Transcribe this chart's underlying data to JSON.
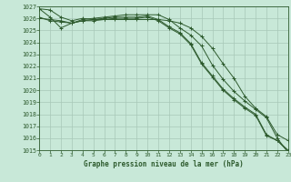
{
  "title": "Graphe pression niveau de la mer (hPa)",
  "background_color": "#c8e8d8",
  "grid_color": "#a8c8b8",
  "line_color": "#2d5a2d",
  "xlim": [
    0,
    23
  ],
  "ylim": [
    1015,
    1027
  ],
  "xticks": [
    0,
    1,
    2,
    3,
    4,
    5,
    6,
    7,
    8,
    9,
    10,
    11,
    12,
    13,
    14,
    15,
    16,
    17,
    18,
    19,
    20,
    21,
    22,
    23
  ],
  "yticks": [
    1015,
    1016,
    1017,
    1018,
    1019,
    1020,
    1021,
    1022,
    1023,
    1024,
    1025,
    1026,
    1027
  ],
  "series": [
    [
      1026.8,
      1026.7,
      1026.1,
      1025.8,
      1026.0,
      1025.9,
      1025.9,
      1025.9,
      1025.9,
      1025.9,
      1025.9,
      1025.9,
      1025.8,
      1025.6,
      1025.2,
      1024.5,
      1023.5,
      1022.2,
      1021.0,
      1019.5,
      1018.5,
      1017.8,
      1016.3,
      1015.8
    ],
    [
      1026.1,
      1025.8,
      1025.7,
      1025.6,
      1025.8,
      1025.8,
      1025.9,
      1026.0,
      1026.0,
      1026.0,
      1026.1,
      1025.8,
      1025.2,
      1024.7,
      1023.8,
      1022.2,
      1021.1,
      1020.0,
      1019.2,
      1018.5,
      1017.9,
      1016.2,
      1015.8,
      1014.9
    ],
    [
      1026.0,
      1025.9,
      1025.8,
      1025.6,
      1025.8,
      1025.9,
      1026.0,
      1026.1,
      1026.1,
      1026.1,
      1026.2,
      1025.9,
      1025.3,
      1024.8,
      1023.9,
      1022.3,
      1021.2,
      1020.1,
      1019.3,
      1018.6,
      1018.0,
      1016.3,
      1015.8,
      1015.0
    ],
    [
      1026.8,
      1026.1,
      1025.2,
      1025.6,
      1025.9,
      1026.0,
      1026.1,
      1026.2,
      1026.3,
      1026.3,
      1026.3,
      1026.3,
      1025.9,
      1025.2,
      1024.6,
      1023.7,
      1022.1,
      1020.9,
      1019.9,
      1019.1,
      1018.4,
      1017.7,
      1016.0,
      1014.8
    ]
  ]
}
